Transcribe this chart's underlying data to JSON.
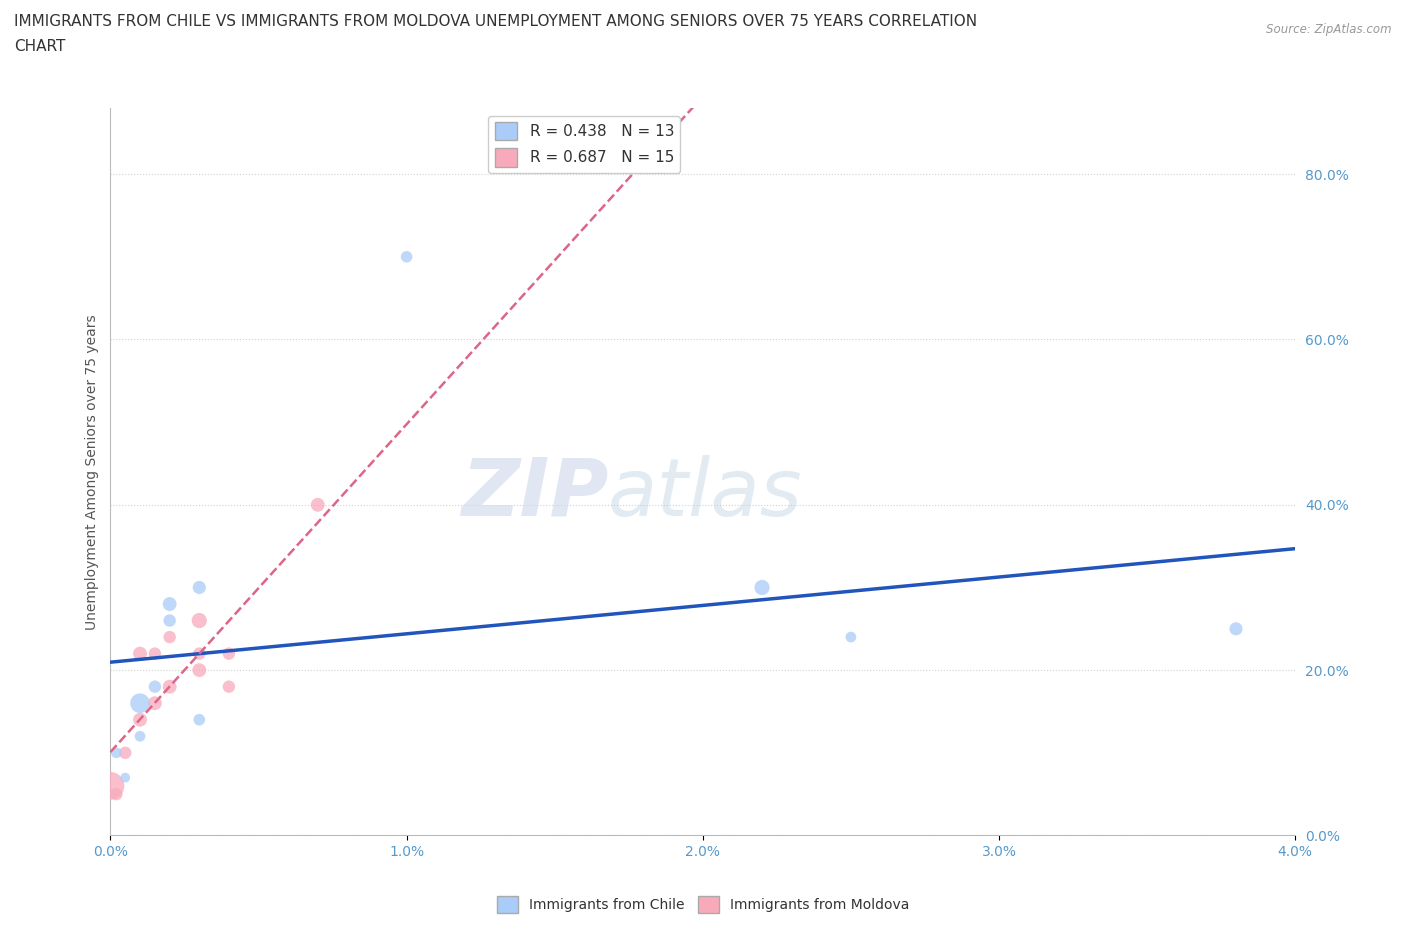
{
  "title_line1": "IMMIGRANTS FROM CHILE VS IMMIGRANTS FROM MOLDOVA UNEMPLOYMENT AMONG SENIORS OVER 75 YEARS CORRELATION",
  "title_line2": "CHART",
  "source": "Source: ZipAtlas.com",
  "ylabel": "Unemployment Among Seniors over 75 years",
  "xlabel_ticks": [
    "0.0%",
    "1.0%",
    "2.0%",
    "3.0%",
    "4.0%"
  ],
  "ylabel_ticks": [
    "0.0%",
    "20.0%",
    "40.0%",
    "60.0%",
    "80.0%"
  ],
  "xlim": [
    0.0,
    0.04
  ],
  "ylim": [
    0.0,
    0.88
  ],
  "chile_R": 0.438,
  "chile_N": 13,
  "moldova_R": 0.687,
  "moldova_N": 15,
  "chile_color": "#aaccf8",
  "moldova_color": "#f8aabb",
  "chile_line_color": "#2255bb",
  "moldova_line_color": "#dd6688",
  "background_color": "#ffffff",
  "grid_color": "#cccccc",
  "watermark_zip": "ZIP",
  "watermark_atlas": "atlas",
  "tick_color": "#5599cc",
  "chile_x": [
    0.0002,
    0.0005,
    0.001,
    0.001,
    0.0015,
    0.002,
    0.002,
    0.003,
    0.003,
    0.01,
    0.022,
    0.025,
    0.038
  ],
  "chile_y": [
    0.1,
    0.07,
    0.12,
    0.16,
    0.18,
    0.26,
    0.28,
    0.14,
    0.3,
    0.7,
    0.3,
    0.24,
    0.25
  ],
  "chile_size": [
    60,
    50,
    60,
    200,
    80,
    80,
    100,
    70,
    90,
    70,
    120,
    60,
    90
  ],
  "moldova_x": [
    0.0,
    0.0002,
    0.0005,
    0.001,
    0.001,
    0.0015,
    0.0015,
    0.002,
    0.002,
    0.003,
    0.003,
    0.003,
    0.004,
    0.004,
    0.007
  ],
  "moldova_y": [
    0.06,
    0.05,
    0.1,
    0.14,
    0.22,
    0.16,
    0.22,
    0.18,
    0.24,
    0.22,
    0.2,
    0.26,
    0.22,
    0.18,
    0.4
  ],
  "moldova_size": [
    400,
    80,
    80,
    100,
    100,
    100,
    80,
    100,
    80,
    80,
    100,
    120,
    80,
    80,
    100
  ],
  "title_fontsize": 11,
  "legend_fontsize": 11,
  "axis_fontsize": 10
}
